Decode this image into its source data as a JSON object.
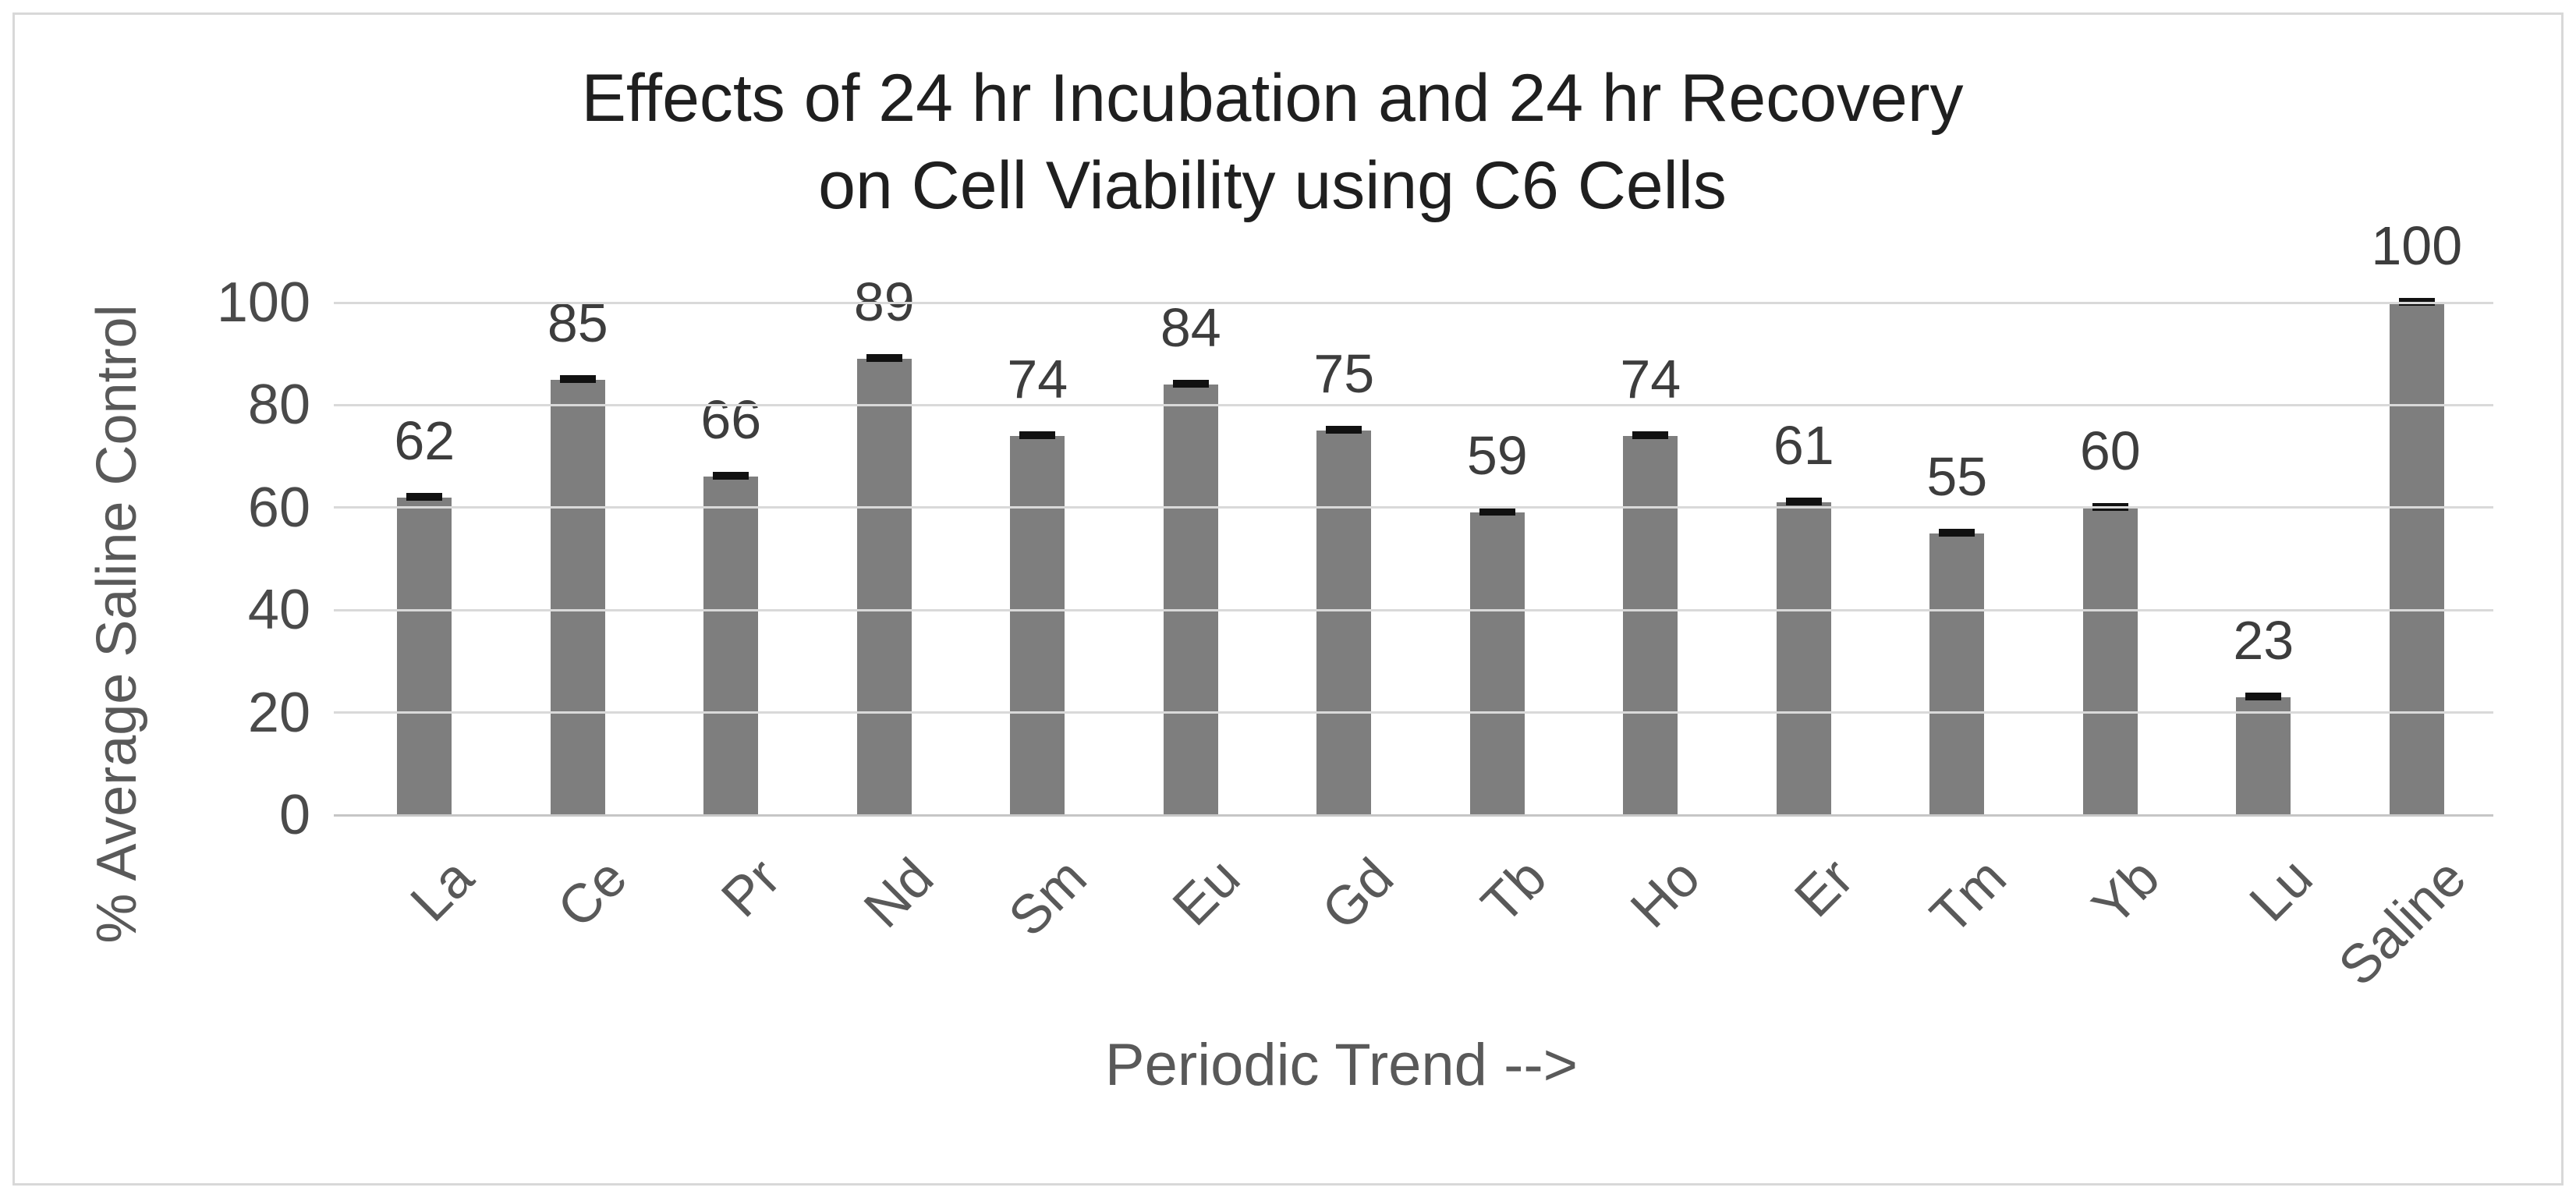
{
  "title": {
    "line1": "Effects of 24 hr Incubation and 24 hr Recovery",
    "line2": "on Cell Viability using C6 Cells"
  },
  "y_axis": {
    "title": "% Average Saline Control",
    "ticks": [
      0,
      20,
      40,
      60,
      80,
      100
    ]
  },
  "x_axis": {
    "title": "Periodic Trend -->"
  },
  "chart_data": {
    "type": "bar",
    "title": "Effects of 24 hr Incubation and 24 hr Recovery on Cell Viability using C6 Cells",
    "categories": [
      "La",
      "Ce",
      "Pr",
      "Nd",
      "Sm",
      "Eu",
      "Gd",
      "Tb",
      "Ho",
      "Er",
      "Tm",
      "Yb",
      "Lu",
      "Saline"
    ],
    "values": [
      62,
      85,
      66,
      89,
      74,
      84,
      75,
      59,
      74,
      61,
      55,
      60,
      23,
      100
    ],
    "data_labels": [
      62,
      85,
      66,
      89,
      74,
      84,
      75,
      59,
      74,
      61,
      55,
      60,
      23,
      100
    ],
    "xlabel": "Periodic Trend -->",
    "ylabel": "% Average Saline Control",
    "ylim": [
      0,
      100
    ],
    "ytick_interval": 20,
    "grid": true,
    "legend": false,
    "error_bars": "short black cap (~±1) centered on top of every bar"
  },
  "colors": {
    "bar": "#7e7e7e",
    "gridline": "#d9d9d9",
    "axis_line": "#c6c6c6",
    "frame_border": "#d8d8d8",
    "title_text": "#1f1f1f",
    "tick_label_text": "#4a4a4a",
    "axis_title_text": "#595959",
    "data_label_text": "#3d3d3d",
    "error_cap": "#111111",
    "background": "#ffffff"
  }
}
